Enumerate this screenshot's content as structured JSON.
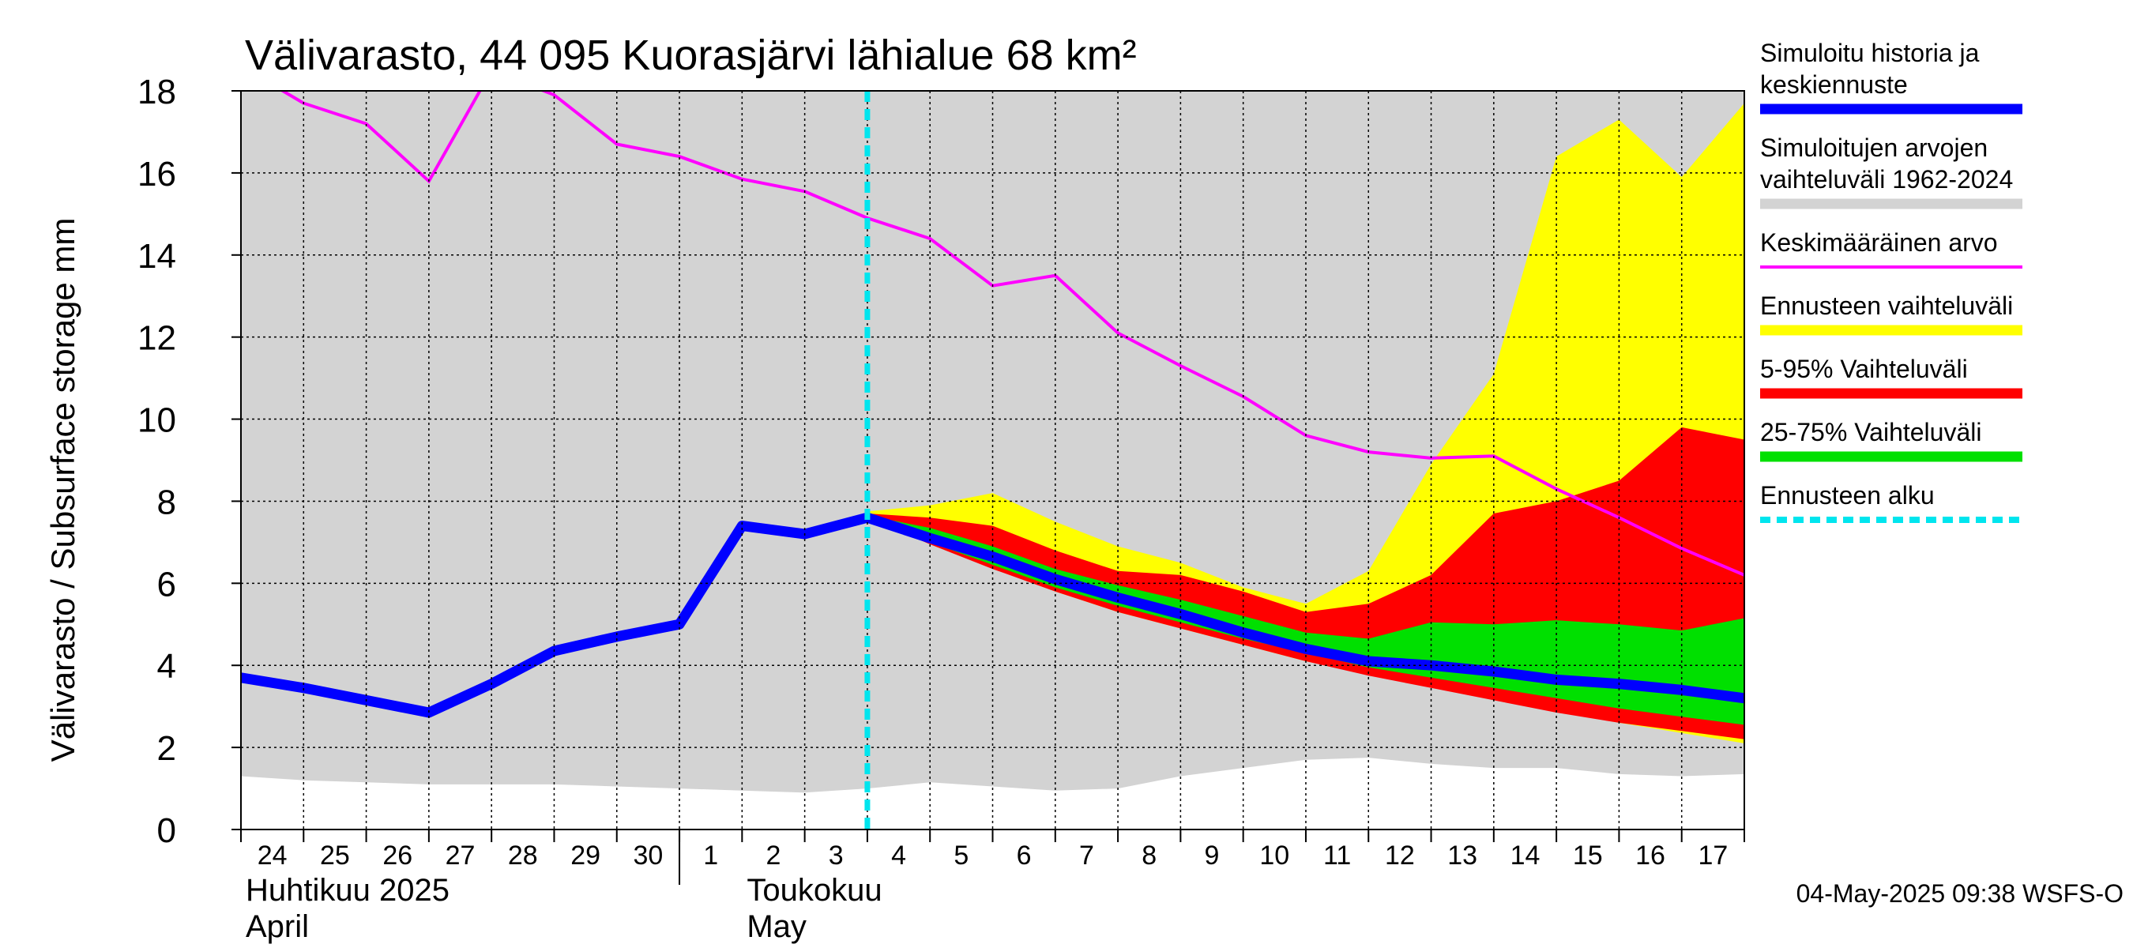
{
  "chart_data": {
    "type": "area",
    "title": "Välivarasto, 44 095 Kuorasjärvi lähialue 68 km²",
    "ylabel": "Välivarasto / Subsurface storage  mm",
    "xlabel": "",
    "ylim": [
      0,
      18
    ],
    "yticks": [
      0,
      2,
      4,
      6,
      8,
      10,
      12,
      14,
      16,
      18
    ],
    "grid": true,
    "legend_position": "right",
    "x": [
      "2025-04-24",
      "2025-04-25",
      "2025-04-26",
      "2025-04-27",
      "2025-04-28",
      "2025-04-29",
      "2025-04-30",
      "2025-05-01",
      "2025-05-02",
      "2025-05-03",
      "2025-05-04",
      "2025-05-05",
      "2025-05-06",
      "2025-05-07",
      "2025-05-08",
      "2025-05-09",
      "2025-05-10",
      "2025-05-11",
      "2025-05-12",
      "2025-05-13",
      "2025-05-14",
      "2025-05-15",
      "2025-05-16",
      "2025-05-17",
      "2025-05-18"
    ],
    "day_labels": [
      "24",
      "25",
      "26",
      "27",
      "28",
      "29",
      "30",
      "1",
      "2",
      "3",
      "4",
      "5",
      "6",
      "7",
      "8",
      "9",
      "10",
      "11",
      "12",
      "13",
      "14",
      "15",
      "16",
      "17"
    ],
    "months": [
      {
        "fi": "Huhtikuu  2025",
        "en": "April"
      },
      {
        "fi": "Toukokuu",
        "en": "May"
      }
    ],
    "forecast_start": "2025-05-04",
    "series": [
      {
        "name": "Simuloitujen arvojen vaihteluväli 1962-2024",
        "kind": "band",
        "color": "#d3d3d3",
        "lower": [
          1.3,
          1.2,
          1.15,
          1.1,
          1.1,
          1.1,
          1.05,
          1.0,
          0.95,
          0.9,
          1.0,
          1.15,
          1.05,
          0.95,
          1.0,
          1.3,
          1.5,
          1.7,
          1.75,
          1.6,
          1.5,
          1.5,
          1.35,
          1.3,
          1.35
        ],
        "upper": [
          18,
          18,
          18,
          18,
          18,
          18,
          18,
          18,
          18,
          18,
          18,
          18,
          18,
          18,
          18,
          18,
          18,
          18,
          18,
          18,
          18,
          18,
          18,
          18,
          18
        ]
      },
      {
        "name": "Ennusteen vaihteluväli",
        "kind": "band",
        "color": "#ffff00",
        "lower": [
          null,
          null,
          null,
          null,
          null,
          null,
          null,
          null,
          null,
          null,
          7.65,
          7.0,
          6.4,
          5.8,
          5.3,
          4.9,
          4.5,
          4.1,
          3.8,
          3.5,
          3.2,
          2.9,
          2.6,
          2.35,
          2.1
        ],
        "upper": [
          null,
          null,
          null,
          null,
          null,
          null,
          null,
          null,
          null,
          null,
          7.75,
          7.9,
          8.2,
          7.5,
          6.9,
          6.5,
          5.9,
          5.5,
          6.3,
          8.9,
          11.1,
          16.4,
          17.3,
          15.9,
          17.7
        ]
      },
      {
        "name": "5-95% Vaihteluväli",
        "kind": "band",
        "color": "#ff0000",
        "lower": [
          null,
          null,
          null,
          null,
          null,
          null,
          null,
          null,
          null,
          null,
          7.6,
          6.95,
          6.35,
          5.8,
          5.3,
          4.9,
          4.5,
          4.1,
          3.75,
          3.45,
          3.15,
          2.85,
          2.6,
          2.4,
          2.2
        ],
        "upper": [
          null,
          null,
          null,
          null,
          null,
          null,
          null,
          null,
          null,
          null,
          7.7,
          7.6,
          7.4,
          6.8,
          6.3,
          6.2,
          5.8,
          5.3,
          5.5,
          6.2,
          7.7,
          8.0,
          8.5,
          9.8,
          9.5
        ]
      },
      {
        "name": "25-75% Vaihteluväli",
        "kind": "band",
        "color": "#00e000",
        "lower": [
          null,
          null,
          null,
          null,
          null,
          null,
          null,
          null,
          null,
          null,
          7.6,
          7.0,
          6.45,
          5.9,
          5.45,
          5.05,
          4.65,
          4.3,
          3.95,
          3.7,
          3.45,
          3.2,
          2.95,
          2.75,
          2.55
        ],
        "upper": [
          null,
          null,
          null,
          null,
          null,
          null,
          null,
          null,
          null,
          null,
          7.65,
          7.35,
          6.9,
          6.35,
          5.95,
          5.6,
          5.2,
          4.8,
          4.65,
          5.05,
          5.0,
          5.1,
          5.0,
          4.85,
          5.15
        ]
      },
      {
        "name": "Keskimääräinen arvo",
        "kind": "line",
        "color": "#ff00ff",
        "values": [
          18.6,
          17.7,
          17.2,
          15.8,
          18.5,
          17.9,
          16.7,
          16.4,
          15.85,
          15.55,
          14.9,
          14.4,
          13.25,
          13.5,
          12.1,
          11.3,
          10.55,
          9.6,
          9.2,
          9.05,
          9.1,
          8.3,
          7.6,
          6.85,
          6.2
        ]
      },
      {
        "name": "Simuloitu historia ja keskiennuste",
        "kind": "line",
        "color": "#0000ff",
        "values": [
          3.7,
          3.45,
          3.15,
          2.85,
          3.55,
          4.35,
          4.7,
          5.0,
          7.4,
          7.2,
          7.6,
          7.1,
          6.65,
          6.1,
          5.65,
          5.25,
          4.8,
          4.4,
          4.1,
          4.0,
          3.85,
          3.65,
          3.55,
          3.4,
          3.2
        ]
      }
    ]
  },
  "legend": [
    {
      "lines": [
        "Simuloitu historia ja",
        "keskiennuste"
      ],
      "color": "#0000ff",
      "style": "thick"
    },
    {
      "lines": [
        "Simuloitujen arvojen",
        "vaihteluväli 1962-2024"
      ],
      "color": "#d3d3d3",
      "style": "thick"
    },
    {
      "lines": [
        "Keskimääräinen arvo"
      ],
      "color": "#ff00ff",
      "style": "thin"
    },
    {
      "lines": [
        "Ennusteen vaihteluväli"
      ],
      "color": "#ffff00",
      "style": "thick"
    },
    {
      "lines": [
        "5-95% Vaihteluväli"
      ],
      "color": "#ff0000",
      "style": "thick"
    },
    {
      "lines": [
        "25-75% Vaihteluväli"
      ],
      "color": "#00e000",
      "style": "thick"
    },
    {
      "lines": [
        "Ennusteen alku"
      ],
      "color": "#00e5ee",
      "style": "dashed"
    }
  ],
  "timestamp": "04-May-2025 09:38 WSFS-O"
}
